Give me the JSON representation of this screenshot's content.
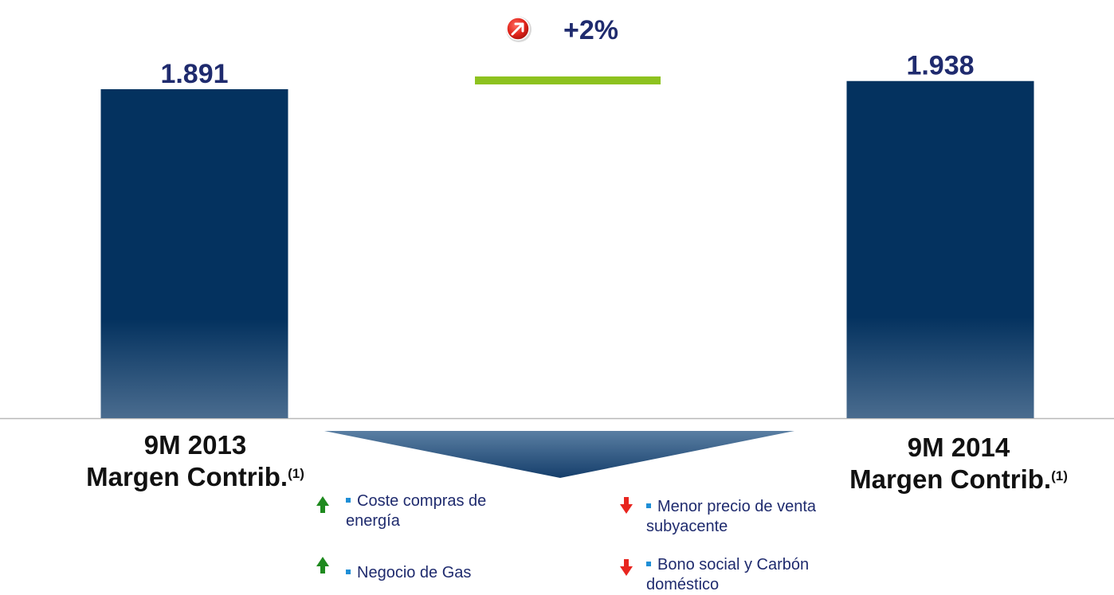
{
  "chart_data": {
    "type": "bar",
    "categories": [
      "9M 2013 Margen Contrib.(1)",
      "9M 2014 Margen Contrib.(1)"
    ],
    "values": [
      1891,
      1938
    ],
    "value_labels": [
      "1.891",
      "1.938"
    ],
    "ylim": [
      0,
      2000
    ],
    "grid": false,
    "legend": "none",
    "bar_color": "#04325f",
    "change": {
      "label": "+2%",
      "icon": "red-circle-up-right-arrow-icon",
      "underline_color": "#8dc21f"
    }
  },
  "labels": {
    "left": {
      "line1": "9M 2013",
      "line2": "Margen Contrib.",
      "note": "(1)"
    },
    "right": {
      "line1": "9M 2014",
      "line2": "Margen Contrib.",
      "note": "(1)"
    }
  },
  "drivers": {
    "positive": [
      {
        "line1": "Coste compras de",
        "line2": "energía",
        "icon": "green-up-arrow-icon"
      },
      {
        "line1": "Negocio de Gas",
        "line2": "",
        "icon": "green-up-arrow-icon"
      }
    ],
    "negative": [
      {
        "line1": "Menor precio de venta",
        "line2": "subyacente",
        "icon": "red-down-arrow-icon"
      },
      {
        "line1": "Bono social y Carbón",
        "line2": "doméstico",
        "icon": "red-down-arrow-icon"
      }
    ],
    "colors": {
      "up": "#1f8a1f",
      "down": "#e8251f",
      "bullet": "#1f8fd6"
    }
  }
}
